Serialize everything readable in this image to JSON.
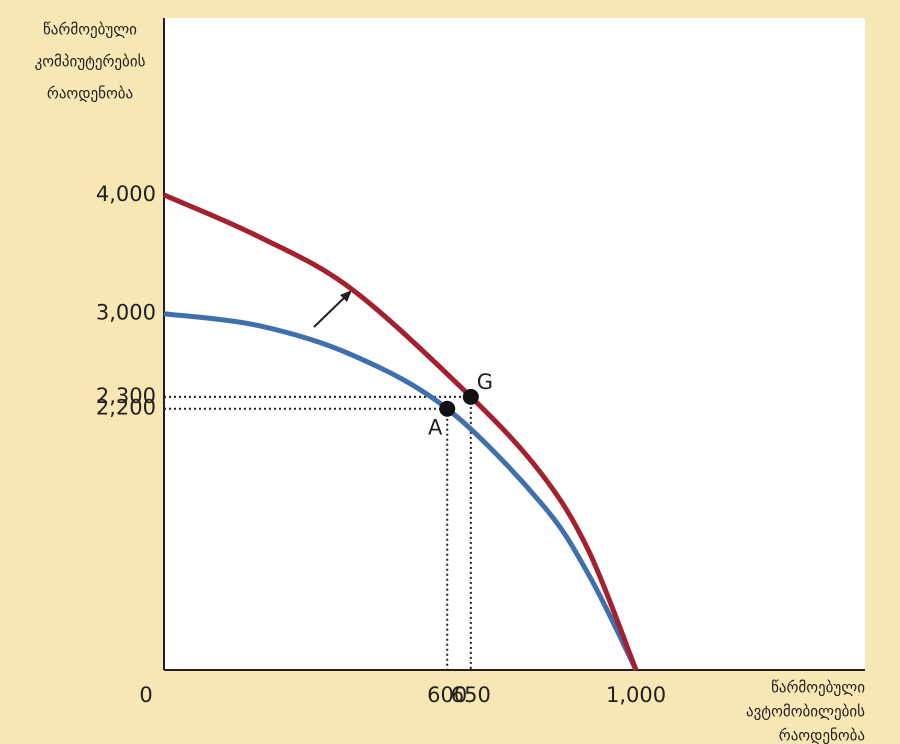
{
  "chart_data": {
    "type": "line",
    "y_label": [
      "წარმოებული",
      "კომპიუტერების",
      "რაოდენობა"
    ],
    "x_label": [
      "წარმოებული",
      "ავტომობილების",
      "რაოდენობა"
    ],
    "xlim": [
      0,
      1485
    ],
    "ylim": [
      0,
      5490
    ],
    "xticks": [
      0,
      600,
      650,
      {
        "value": 1000,
        "label": "1,000"
      }
    ],
    "yticks": [
      {
        "value": 2200,
        "label": "2,200"
      },
      {
        "value": 2300,
        "label": "2,300"
      },
      {
        "value": 3000,
        "label": "3,000"
      },
      {
        "value": 4000,
        "label": "4,000"
      }
    ],
    "series": [
      {
        "color": "#3f6fad",
        "x": [
          0,
          200,
          400,
          600,
          800,
          900,
          1000
        ],
        "values": [
          3000,
          2900,
          2650,
          2200,
          1400,
          800,
          0
        ]
      },
      {
        "color": "#a3212f",
        "x": [
          0,
          200,
          400,
          650,
          800,
          900,
          1000
        ],
        "values": [
          4000,
          3650,
          3200,
          2300,
          1650,
          1000,
          0
        ]
      }
    ],
    "points": [
      {
        "label": "A",
        "x": 600,
        "y": 2200
      },
      {
        "label": "G",
        "x": 650,
        "y": 2300
      }
    ]
  }
}
